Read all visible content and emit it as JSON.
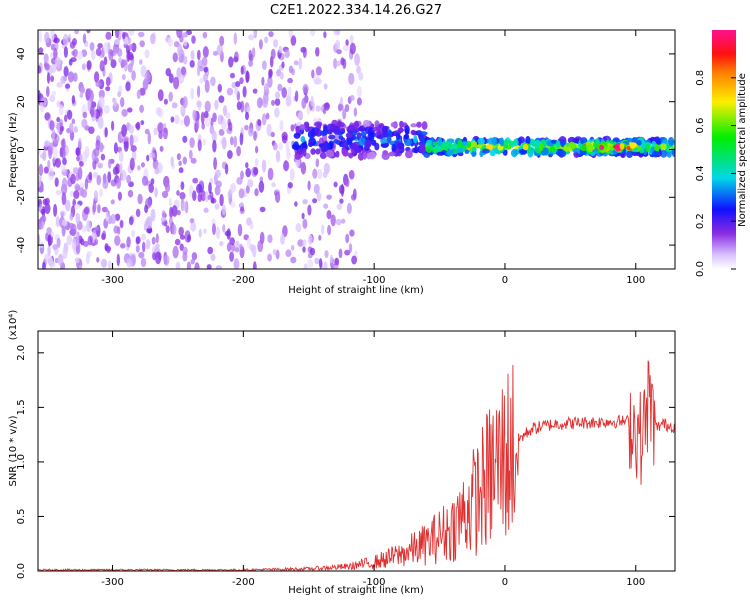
{
  "title": "C2E1.2022.334.14.26.G27",
  "chart_data": [
    {
      "type": "heatmap",
      "xlabel": "Height of straight line (km)",
      "ylabel": "Frequency (Hz)",
      "xlim": [
        -357,
        130
      ],
      "ylim": [
        -50,
        50
      ],
      "xticks": [
        -300,
        -200,
        -100,
        0,
        100
      ],
      "yticks": [
        -40,
        -20,
        0,
        20,
        40
      ],
      "xtick_labels": [
        "-300",
        "-200",
        "-100",
        "0",
        "100"
      ],
      "ytick_labels": [
        "-40",
        "-20",
        "0",
        "20",
        "40"
      ],
      "colorbar": {
        "label": "Normalized spectral amplitude",
        "range": [
          0,
          1
        ],
        "ticks": [
          0.0,
          0.2,
          0.4,
          0.6,
          0.8
        ],
        "tick_labels": [
          "0.0",
          "0.2",
          "0.4",
          "0.6",
          "0.8"
        ],
        "colormap": "rainbow (white→violet→blue→cyan→green→yellow→red→magenta)"
      },
      "regions": [
        {
          "x_range": [
            -357,
            -110
          ],
          "description": "diffuse noise across full band",
          "amplitude": 0.1
        },
        {
          "x_range": [
            -160,
            -60
          ],
          "center_hz": 4,
          "halfwidth_hz": 7,
          "amplitude": 0.3
        },
        {
          "x_range": [
            -60,
            130
          ],
          "center_hz": 1,
          "halfwidth_hz": 3,
          "amplitude": 0.6
        },
        {
          "x_range": [
            60,
            100
          ],
          "center_hz": 1,
          "halfwidth_hz": 1,
          "amplitude": 0.9
        }
      ],
      "grid": false
    },
    {
      "type": "line",
      "xlabel": "Height of straight line (km)",
      "ylabel": "SNR (10 * v/v)",
      "scale_note": "(x10⁴)",
      "xlim": [
        -357,
        130
      ],
      "ylim": [
        0,
        2.2
      ],
      "xticks": [
        -300,
        -200,
        -100,
        0,
        100
      ],
      "yticks": [
        0.0,
        0.5,
        1.0,
        1.5,
        2.0
      ],
      "xtick_labels": [
        "-300",
        "-200",
        "-100",
        "0",
        "100"
      ],
      "ytick_labels": [
        "0.0",
        "0.5",
        "1.0",
        "1.5",
        "2.0"
      ],
      "series": [
        {
          "color": "#e03030",
          "x": [
            -357,
            -300,
            -250,
            -200,
            -150,
            -120,
            -100,
            -80,
            -60,
            -40,
            -30,
            -20,
            -10,
            0,
            10,
            20,
            30,
            40,
            60,
            80,
            95,
            100,
            105,
            110,
            115,
            120,
            130
          ],
          "y": [
            0.01,
            0.01,
            0.01,
            0.01,
            0.02,
            0.04,
            0.08,
            0.15,
            0.25,
            0.4,
            0.55,
            0.7,
            0.9,
            1.05,
            1.2,
            1.3,
            1.33,
            1.35,
            1.36,
            1.37,
            1.37,
            1.3,
            1.2,
            1.6,
            1.3,
            1.35,
            1.32
          ]
        }
      ],
      "grid": false
    }
  ]
}
